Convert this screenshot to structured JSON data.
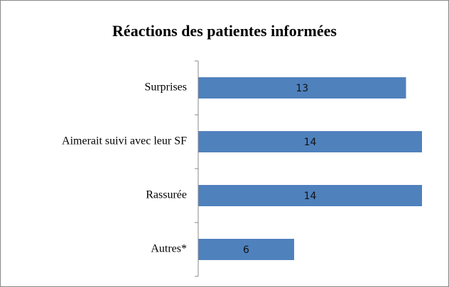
{
  "chart_data": {
    "type": "bar",
    "orientation": "horizontal",
    "title": "Réactions des patientes informées",
    "categories": [
      "Surprises",
      "Aimerait suivi avec leur SF",
      "Rassurée",
      "Autres*"
    ],
    "values": [
      13,
      14,
      14,
      6
    ],
    "color": "#4f81bd",
    "xlim": [
      0,
      14
    ]
  }
}
